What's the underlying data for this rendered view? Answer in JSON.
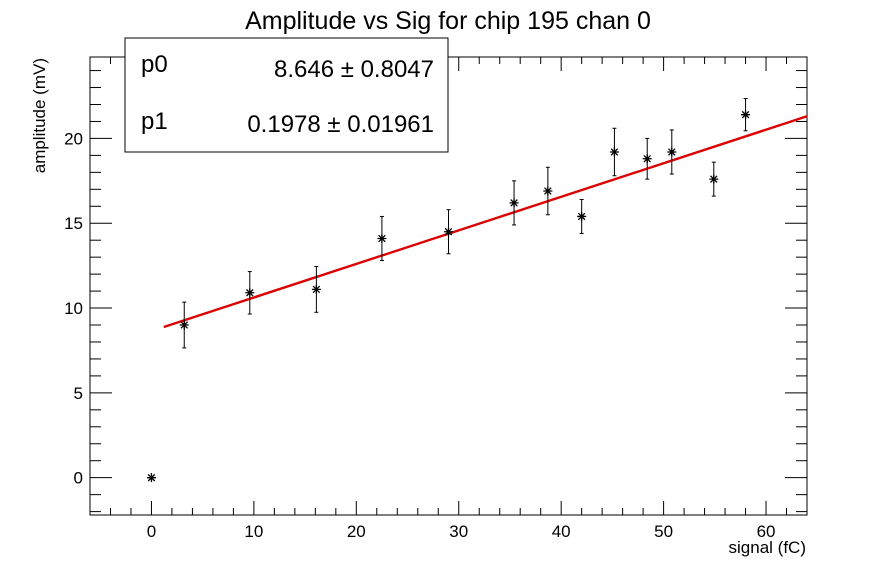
{
  "chart_data": {
    "type": "scatter",
    "title": "Amplitude vs Sig for chip 195 chan 0",
    "xlabel": "signal (fC)",
    "ylabel": "amplitude (mV)",
    "xlim": [
      -6,
      64
    ],
    "ylim": [
      -2.2,
      24.8
    ],
    "x_ticks": [
      0,
      10,
      20,
      30,
      40,
      50,
      60
    ],
    "y_ticks": [
      0,
      5,
      10,
      15,
      20
    ],
    "grid": false,
    "marker_color": "#000000",
    "fit_color": "#dd0000",
    "points": [
      {
        "x": 0,
        "y": 0,
        "err": 0
      },
      {
        "x": 3.2,
        "y": 9.0,
        "err": 1.35
      },
      {
        "x": 9.6,
        "y": 10.9,
        "err": 1.25
      },
      {
        "x": 16.1,
        "y": 11.1,
        "err": 1.35
      },
      {
        "x": 22.5,
        "y": 14.1,
        "err": 1.3
      },
      {
        "x": 29.0,
        "y": 14.5,
        "err": 1.3
      },
      {
        "x": 35.4,
        "y": 16.2,
        "err": 1.3
      },
      {
        "x": 38.7,
        "y": 16.9,
        "err": 1.4
      },
      {
        "x": 42.0,
        "y": 15.4,
        "err": 1.0
      },
      {
        "x": 45.2,
        "y": 19.2,
        "err": 1.4
      },
      {
        "x": 48.4,
        "y": 18.8,
        "err": 1.2
      },
      {
        "x": 50.8,
        "y": 19.2,
        "err": 1.3
      },
      {
        "x": 54.9,
        "y": 17.6,
        "err": 1.0
      },
      {
        "x": 58.0,
        "y": 21.4,
        "err": 0.95
      }
    ],
    "fit": {
      "function": "pol1",
      "p0": 8.646,
      "p1": 0.1978,
      "x_range": [
        1.2,
        64
      ]
    }
  },
  "stats_box": {
    "rows": [
      {
        "name": "p0",
        "value": "8.646 ± 0.8047"
      },
      {
        "name": "p1",
        "value": "0.1978 ± 0.01961"
      }
    ]
  }
}
